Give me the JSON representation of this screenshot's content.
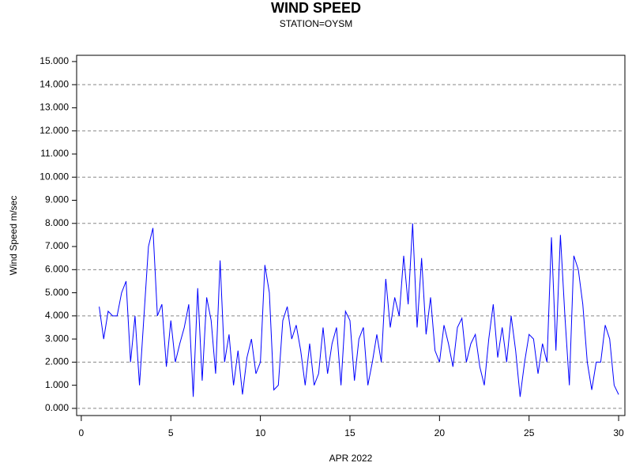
{
  "chart_data": {
    "type": "line",
    "title": "WIND SPEED",
    "subtitle": "STATION=OYSM",
    "x_label": "APR 2022",
    "y_label": "Wind Speed m/sec",
    "xlim": [
      -0.26,
      30.35
    ],
    "ylim": [
      -0.31,
      15.27
    ],
    "xticks": [
      0,
      5,
      10,
      15,
      20,
      25,
      30
    ],
    "yticks": [
      {
        "value": 0,
        "label": "0.000"
      },
      {
        "value": 1,
        "label": "1.000"
      },
      {
        "value": 2,
        "label": "2.000"
      },
      {
        "value": 3,
        "label": "3.000"
      },
      {
        "value": 4,
        "label": "4.000"
      },
      {
        "value": 5,
        "label": "5.000"
      },
      {
        "value": 6,
        "label": "6.000"
      },
      {
        "value": 7,
        "label": "7.000"
      },
      {
        "value": 8,
        "label": "8.000"
      },
      {
        "value": 9,
        "label": "9.000"
      },
      {
        "value": 10,
        "label": "10.000"
      },
      {
        "value": 11,
        "label": "11.000"
      },
      {
        "value": 12,
        "label": "12.000"
      },
      {
        "value": 13,
        "label": "13.000"
      },
      {
        "value": 14,
        "label": "14.000"
      },
      {
        "value": 15,
        "label": "15.000"
      }
    ],
    "ygrid": [
      0,
      2,
      4,
      6,
      8,
      10,
      12,
      14
    ],
    "x": [
      1,
      1.25,
      1.5,
      1.75,
      2,
      2.25,
      2.5,
      2.75,
      3,
      3.25,
      3.5,
      3.75,
      4,
      4.25,
      4.5,
      4.75,
      5,
      5.25,
      5.5,
      5.75,
      6,
      6.25,
      6.5,
      6.75,
      7,
      7.25,
      7.5,
      7.75,
      8,
      8.25,
      8.5,
      8.75,
      9,
      9.25,
      9.5,
      9.75,
      10,
      10.25,
      10.5,
      10.75,
      11,
      11.25,
      11.5,
      11.75,
      12,
      12.25,
      12.5,
      12.75,
      13,
      13.25,
      13.5,
      13.75,
      14,
      14.25,
      14.5,
      14.75,
      15,
      15.25,
      15.5,
      15.75,
      16,
      16.25,
      16.5,
      16.75,
      17,
      17.25,
      17.5,
      17.75,
      18,
      18.25,
      18.5,
      18.75,
      19,
      19.25,
      19.5,
      19.75,
      20,
      20.25,
      20.5,
      20.75,
      21,
      21.25,
      21.5,
      21.75,
      22,
      22.25,
      22.5,
      22.75,
      23,
      23.25,
      23.5,
      23.75,
      24,
      24.25,
      24.5,
      24.75,
      25,
      25.25,
      25.5,
      25.75,
      26,
      26.25,
      26.5,
      26.75,
      27,
      27.25,
      27.5,
      27.75,
      28,
      28.25,
      28.5,
      28.75,
      29,
      29.25,
      29.5,
      29.75,
      30
    ],
    "series": [
      {
        "name": "Wind Speed",
        "color": "#0000ff",
        "values": [
          4.4,
          3.0,
          4.2,
          4.0,
          4.0,
          5.0,
          5.5,
          2.0,
          4.0,
          1.0,
          4.0,
          7.0,
          7.8,
          4.0,
          4.5,
          1.8,
          3.8,
          2.0,
          2.8,
          3.5,
          4.5,
          0.5,
          5.2,
          1.2,
          4.8,
          3.8,
          1.5,
          6.4,
          2.0,
          3.2,
          1.0,
          2.5,
          0.6,
          2.2,
          3.0,
          1.5,
          2.0,
          6.2,
          5.0,
          0.8,
          1.0,
          3.8,
          4.4,
          3.0,
          3.6,
          2.5,
          1.0,
          2.8,
          1.0,
          1.5,
          3.5,
          1.5,
          2.8,
          3.5,
          1.0,
          4.2,
          3.8,
          1.2,
          3.0,
          3.5,
          1.0,
          2.0,
          3.2,
          2.0,
          5.6,
          3.5,
          4.8,
          4.0,
          6.6,
          4.5,
          8.0,
          3.5,
          6.5,
          3.2,
          4.8,
          2.5,
          2.0,
          3.6,
          2.8,
          1.8,
          3.5,
          3.9,
          2.0,
          2.8,
          3.2,
          1.8,
          1.0,
          3.0,
          4.5,
          2.2,
          3.5,
          2.0,
          4.0,
          2.5,
          0.5,
          2.0,
          3.2,
          3.0,
          1.5,
          2.8,
          2.0,
          7.4,
          2.5,
          7.5,
          4.0,
          1.0,
          6.6,
          6.0,
          4.5,
          2.0,
          0.8,
          2.0,
          2.0,
          3.6,
          3.0,
          1.0,
          0.6
        ]
      }
    ]
  }
}
